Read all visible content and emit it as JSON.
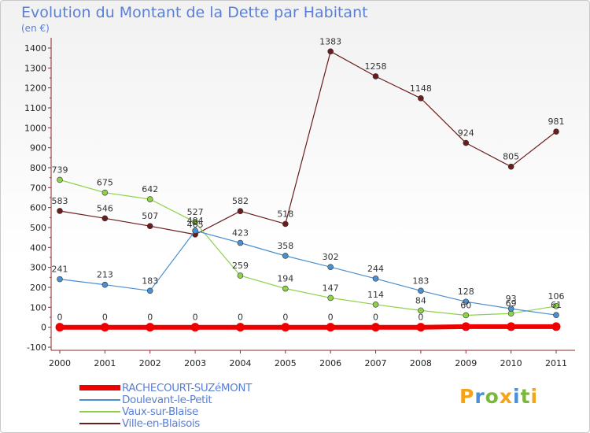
{
  "title": "Evolution du Montant de la Dette par Habitant",
  "subtitle": "(en €)",
  "logo": {
    "text": "Proxiti",
    "letter_colors": [
      "#f5a31a",
      "#4a8fdc",
      "#79b83a",
      "#f5a31a",
      "#4a8fdc",
      "#79b83a",
      "#f5a31a"
    ]
  },
  "chart_data": {
    "type": "line",
    "title": "Evolution du Montant de la Dette par Habitant",
    "ylabel": "(en €)",
    "xlabel": "",
    "x": [
      "2000",
      "2001",
      "2002",
      "2003",
      "2004",
      "2005",
      "2006",
      "2007",
      "2008",
      "2009",
      "2010",
      "2011"
    ],
    "ylim": [
      -100,
      1400
    ],
    "yticks": [
      -100,
      0,
      100,
      200,
      300,
      400,
      500,
      600,
      700,
      800,
      900,
      1000,
      1100,
      1200,
      1300,
      1400
    ],
    "grid": false,
    "legend_position": "bottom-left",
    "series": [
      {
        "name": "RACHECOURT-SUZéMONT",
        "color": "#ee0000",
        "width": 6,
        "values": [
          0,
          0,
          0,
          0,
          0,
          0,
          0,
          0,
          0,
          3,
          3,
          3
        ],
        "labels": [
          "0",
          "0",
          "0",
          "0",
          "0",
          "0",
          "0",
          "0",
          "0",
          "",
          "",
          ""
        ]
      },
      {
        "name": "Doulevant-le-Petit",
        "color": "#4a8fd0",
        "width": 1.2,
        "values": [
          241,
          213,
          183,
          484,
          423,
          358,
          302,
          244,
          183,
          128,
          93,
          61
        ],
        "labels": [
          "241",
          "213",
          "183",
          "484",
          "423",
          "358",
          "302",
          "244",
          "183",
          "128",
          "93",
          "61"
        ]
      },
      {
        "name": "Vaux-sur-Blaise",
        "color": "#8ed24a",
        "width": 1.2,
        "values": [
          739,
          675,
          642,
          527,
          259,
          194,
          147,
          114,
          84,
          60,
          69,
          106
        ],
        "labels": [
          "739",
          "675",
          "642",
          "527",
          "259",
          "194",
          "147",
          "114",
          "84",
          "60",
          "69",
          "106"
        ]
      },
      {
        "name": "Ville-en-Blaisois",
        "color": "#6b1c1c",
        "width": 1.2,
        "values": [
          583,
          546,
          507,
          465,
          582,
          518,
          1383,
          1258,
          1148,
          924,
          805,
          981
        ],
        "labels": [
          "583",
          "546",
          "507",
          "465",
          "582",
          "518",
          "1383",
          "1258",
          "1148",
          "924",
          "805",
          "981"
        ]
      }
    ]
  }
}
